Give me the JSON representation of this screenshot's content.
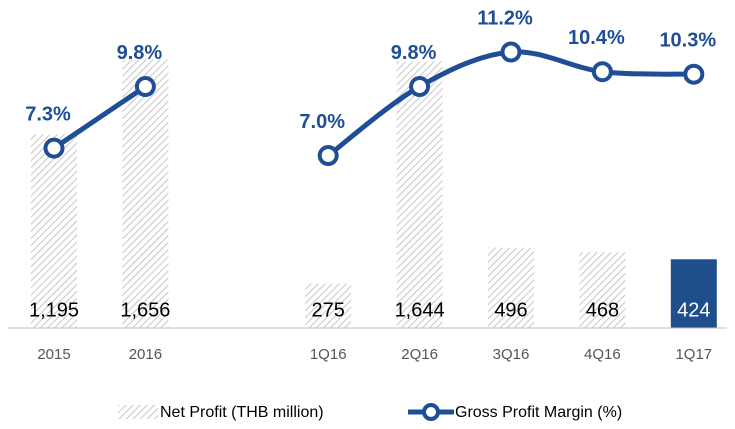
{
  "chart_data": {
    "type": "bar_line",
    "categories": [
      "2015",
      "2016",
      null,
      "1Q16",
      "2Q16",
      "3Q16",
      "4Q16",
      "1Q17"
    ],
    "ylim": [
      0,
      1900
    ],
    "y2lim": [
      0,
      12.5
    ],
    "series": [
      {
        "name": "Net Profit (THB million)",
        "type": "bar",
        "color": "#c6c6c6",
        "hatch": true,
        "highlight_color": "#1f4e8c",
        "highlight_index": 7,
        "values": [
          1195,
          1656,
          null,
          275,
          1644,
          496,
          468,
          424
        ],
        "value_labels": [
          "1,195",
          "1,656",
          null,
          "275",
          "1,644",
          "496",
          "468",
          "424"
        ]
      },
      {
        "name": "Gross Profit Margin (%)",
        "type": "line",
        "axis": "y2",
        "color": "#1f4e96",
        "values": [
          7.3,
          9.8,
          null,
          7.0,
          9.8,
          11.2,
          10.4,
          10.3
        ],
        "value_labels": [
          "7.3%",
          "9.8%",
          null,
          "7.0%",
          "9.8%",
          "11.2%",
          "10.4%",
          "10.3%"
        ]
      }
    ]
  }
}
